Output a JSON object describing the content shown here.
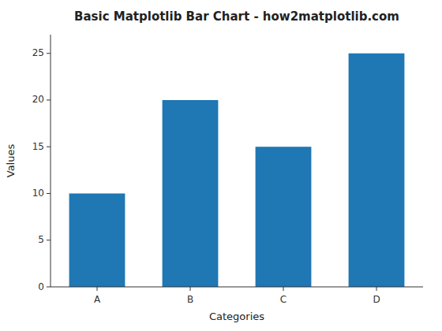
{
  "chart_data": {
    "type": "bar",
    "title": "Basic Matplotlib Bar Chart - how2matplotlib.com",
    "xlabel": "Categories",
    "ylabel": "Values",
    "categories": [
      "A",
      "B",
      "C",
      "D"
    ],
    "values": [
      10,
      20,
      15,
      25
    ],
    "color": "#1f77b4",
    "ylim": [
      0,
      27
    ],
    "yticks": [
      0,
      5,
      10,
      15,
      20,
      25
    ],
    "grid": false
  }
}
